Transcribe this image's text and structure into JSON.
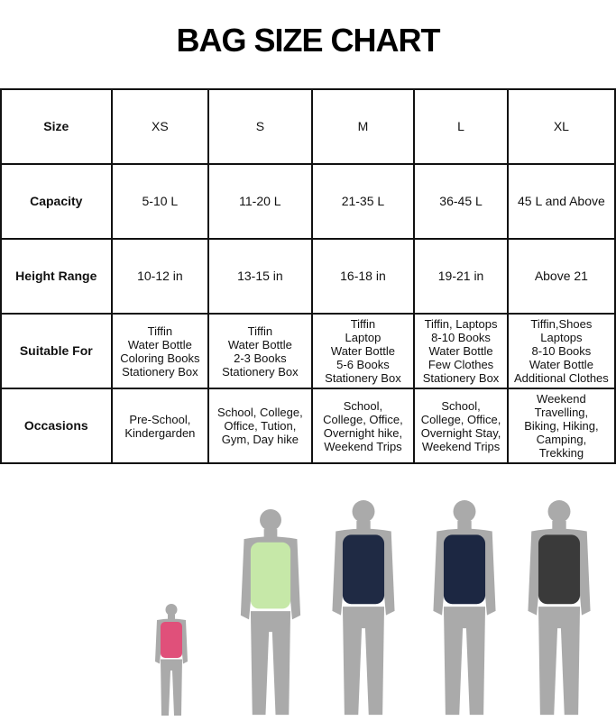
{
  "title": "BAG SIZE CHART",
  "rows": [
    {
      "label": "Size",
      "values": [
        "XS",
        "S",
        "M",
        "L",
        "XL"
      ]
    },
    {
      "label": "Capacity",
      "values": [
        "5-10 L",
        "11-20 L",
        "21-35 L",
        "36-45 L",
        "45 L and Above"
      ]
    },
    {
      "label": "Height Range",
      "values": [
        "10-12 in",
        "13-15 in",
        "16-18 in",
        "19-21 in",
        "Above 21"
      ]
    },
    {
      "label": "Suitable For",
      "values": [
        "Tiffin\nWater Bottle\nColoring Books\nStationery Box",
        "Tiffin\nWater Bottle\n2-3 Books\nStationery Box",
        "Tiffin\nLaptop\nWater Bottle\n5-6 Books\nStationery Box",
        "Tiffin, Laptops\n8-10 Books\nWater Bottle\nFew Clothes\nStationery Box",
        "Tiffin,Shoes\nLaptops\n8-10 Books\nWater Bottle\nAdditional Clothes"
      ]
    },
    {
      "label": "Occasions",
      "values": [
        "Pre-School,\nKindergarden",
        "School, College,\nOffice, Tution,\nGym, Day hike",
        "School,\nCollege, Office,\nOvernight hike,\nWeekend Trips",
        "School,\nCollege, Office,\nOvernight Stay,\nWeekend Trips",
        "Weekend\nTravelling,\nBiking, Hiking,\nCamping,\nTrekking"
      ]
    }
  ],
  "figures": [
    {
      "size": "XS",
      "bag_color": "#e0507a"
    },
    {
      "size": "S",
      "bag_color": "#c6e8a8"
    },
    {
      "size": "M",
      "bag_color": "#1f2a44"
    },
    {
      "size": "L",
      "bag_color": "#1c2742"
    },
    {
      "size": "XL",
      "bag_color": "#3a3a3a"
    }
  ],
  "figure_color": "#aaaaaa"
}
